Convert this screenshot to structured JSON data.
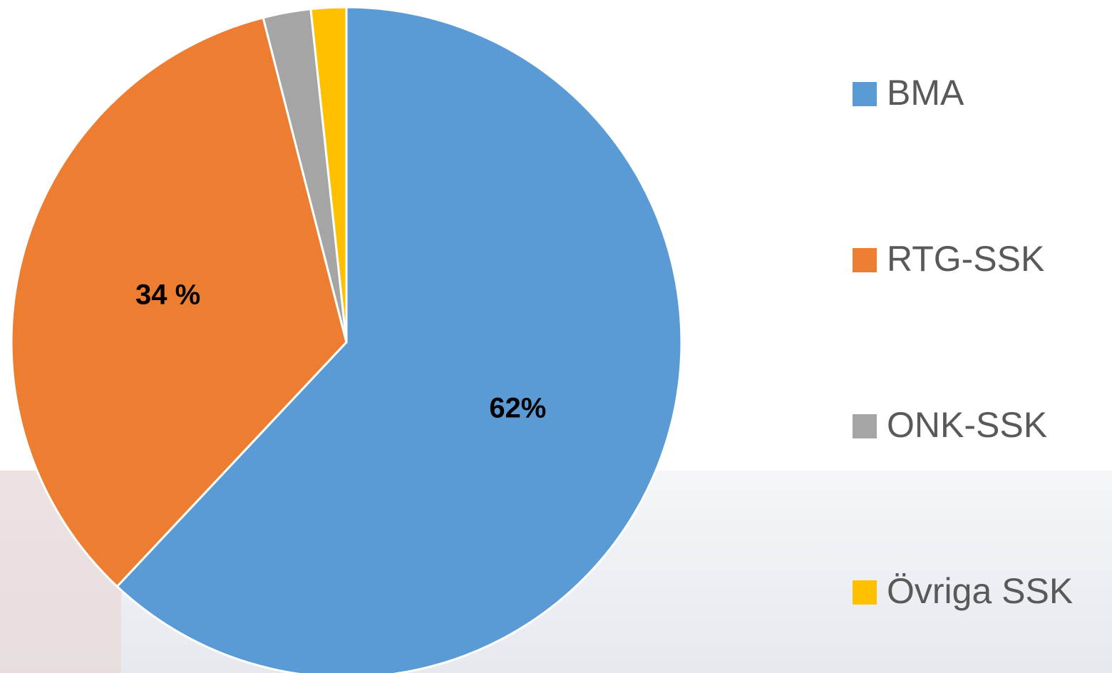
{
  "chart_data": {
    "type": "pie",
    "categories": [
      "BMA",
      "RTG-SSK",
      "ONK-SSK",
      "Övriga SSK"
    ],
    "values": [
      62,
      34,
      2.3,
      1.7
    ],
    "value_labels": [
      "62%",
      "34 %",
      null,
      null
    ],
    "colors": [
      "#5b9bd5",
      "#ed7d31",
      "#a5a5a5",
      "#ffc000"
    ],
    "legend": "right"
  }
}
